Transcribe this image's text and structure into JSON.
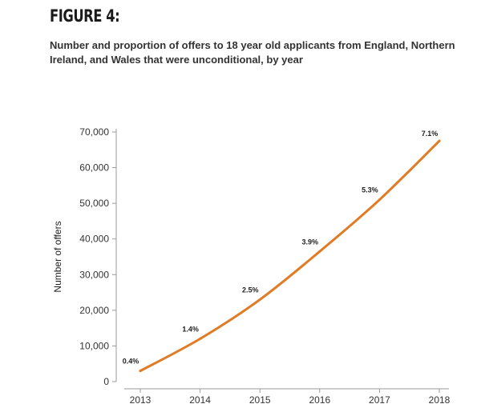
{
  "figure_label": "FIGURE 4:",
  "subtitle": "Number and proportion of offers to 18 year old applicants from England, Northern Ireland, and Wales that were unconditional, by year",
  "chart_data": {
    "type": "line",
    "title": "",
    "xlabel": "",
    "ylabel": "Number of offers",
    "x": [
      "2013",
      "2014",
      "2015",
      "2016",
      "2017",
      "2018"
    ],
    "series": [
      {
        "name": "",
        "values": [
          3000,
          12000,
          23000,
          36500,
          51000,
          67500
        ],
        "labels": [
          "0.4%",
          "1.4%",
          "2.5%",
          "3.9%",
          "5.3%",
          "7.1%"
        ]
      }
    ],
    "ylim": [
      0,
      70000
    ],
    "yticks": [
      0,
      10000,
      20000,
      30000,
      40000,
      50000,
      60000,
      70000
    ],
    "ytick_labels": [
      "0",
      "10,000",
      "20,000",
      "30,000",
      "40,000",
      "50,000",
      "60,000",
      "70,000"
    ],
    "grid": false,
    "line_color": "#e07b26"
  }
}
